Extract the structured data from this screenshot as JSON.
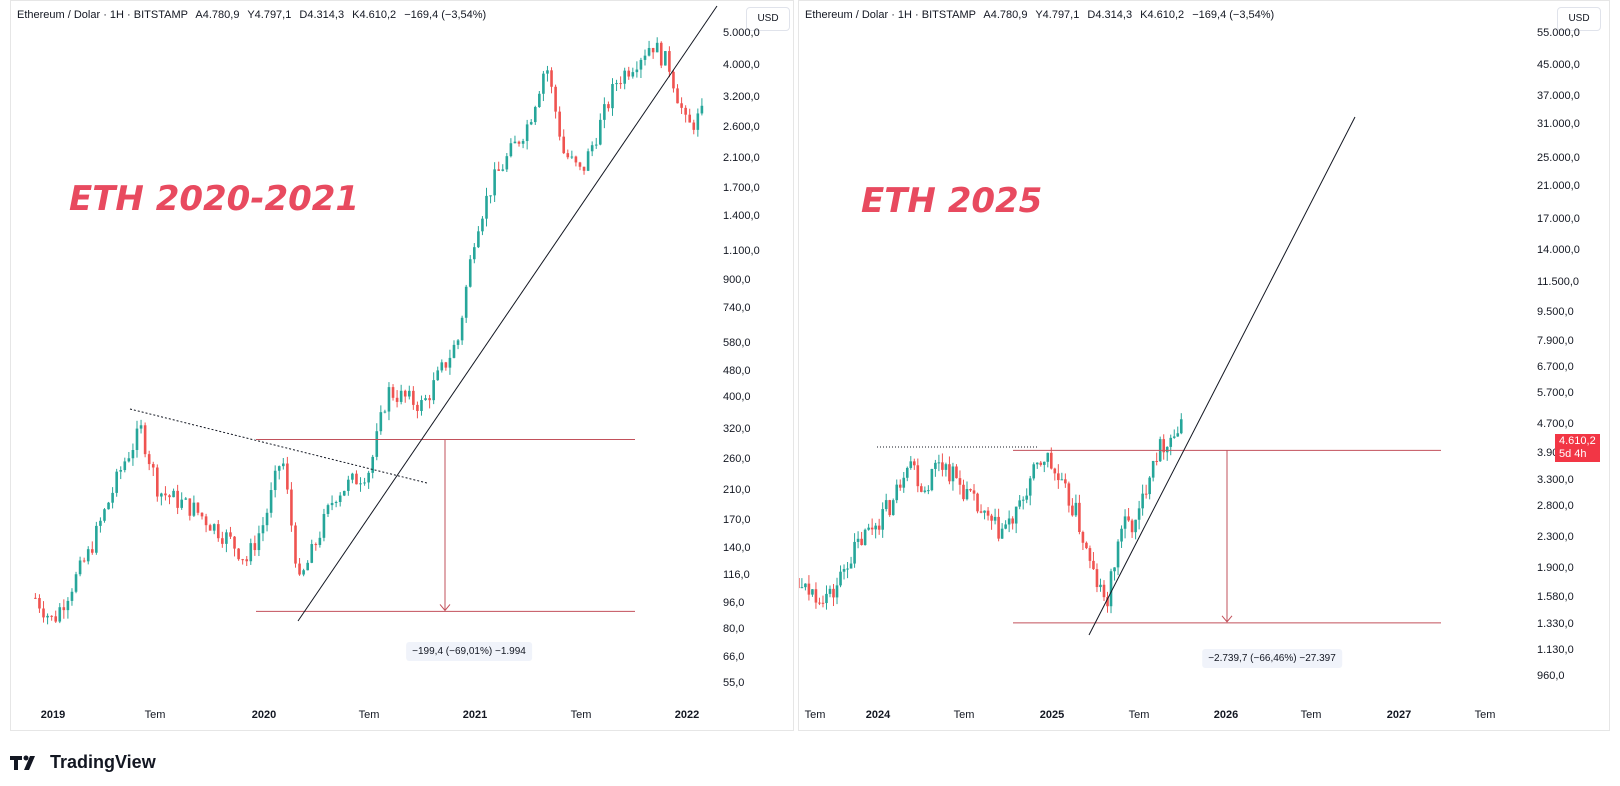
{
  "header": {
    "symbol": "Ethereum / Dolar · 1H · BITSTAMP",
    "open": "A4.780,9",
    "high": "Y4.797,1",
    "low": "D4.314,3",
    "close": "K4.610,2",
    "change": "−169,4 (−3,54%)"
  },
  "currency": "USD",
  "brand": "TradingView",
  "colors": {
    "up": "#26a69a",
    "down": "#ef5350",
    "title": "#e84a5f",
    "level": "#c2515b",
    "price_tag": "#f23645"
  },
  "chart_data": [
    {
      "type": "candlestick",
      "title": "ETH 2020-2021",
      "scale": "log",
      "ylim": [
        55,
        6000
      ],
      "y_ticks": [
        "5.000,0",
        "4.000,0",
        "3.200,0",
        "2.600,0",
        "2.100,0",
        "1.700,0",
        "1.400,0",
        "1.100,0",
        "900,0",
        "740,0",
        "580,0",
        "480,0",
        "400,0",
        "320,0",
        "260,0",
        "210,0",
        "170,0",
        "140,0",
        "116,0",
        "96,0",
        "80,0",
        "66,0",
        "55,0"
      ],
      "x_ticks": [
        "2019",
        "Tem",
        "2020",
        "Tem",
        "2021",
        "Tem",
        "2022"
      ],
      "series_hint": "weekly ETH/USD candles 2018-12 to 2022-02",
      "close_path": [
        {
          "t": "2018-12",
          "v": 100
        },
        {
          "t": "2019-01",
          "v": 85
        },
        {
          "t": "2019-03",
          "v": 135
        },
        {
          "t": "2019-05",
          "v": 255
        },
        {
          "t": "2019-06",
          "v": 320
        },
        {
          "t": "2019-07",
          "v": 210
        },
        {
          "t": "2019-09",
          "v": 185
        },
        {
          "t": "2019-11",
          "v": 150
        },
        {
          "t": "2019-12",
          "v": 130
        },
        {
          "t": "2020-01",
          "v": 170
        },
        {
          "t": "2020-02",
          "v": 270
        },
        {
          "t": "2020-03",
          "v": 110
        },
        {
          "t": "2020-05",
          "v": 205
        },
        {
          "t": "2020-07",
          "v": 245
        },
        {
          "t": "2020-08",
          "v": 420
        },
        {
          "t": "2020-10",
          "v": 380
        },
        {
          "t": "2020-12",
          "v": 600
        },
        {
          "t": "2021-01",
          "v": 1300
        },
        {
          "t": "2021-02",
          "v": 1800
        },
        {
          "t": "2021-04",
          "v": 2700
        },
        {
          "t": "2021-05",
          "v": 4100
        },
        {
          "t": "2021-06",
          "v": 2200
        },
        {
          "t": "2021-07",
          "v": 1900
        },
        {
          "t": "2021-09",
          "v": 3600
        },
        {
          "t": "2021-11",
          "v": 4700
        },
        {
          "t": "2021-12",
          "v": 4000
        },
        {
          "t": "2022-01",
          "v": 2600
        },
        {
          "t": "2022-02",
          "v": 2900
        }
      ],
      "levels": [
        {
          "value": 300
        },
        {
          "value": 91
        }
      ],
      "annotation": "−199,4 (−69,01%) −1.994"
    },
    {
      "type": "candlestick",
      "title": "ETH 2025",
      "scale": "log",
      "ylim": [
        900,
        58000
      ],
      "y_ticks": [
        "55.000,0",
        "45.000,0",
        "37.000,0",
        "31.000,0",
        "25.000,0",
        "21.000,0",
        "17.000,0",
        "14.000,0",
        "11.500,0",
        "9.500,0",
        "7.900,0",
        "6.700,0",
        "5.700,0",
        "4.700,0",
        "3.900,0",
        "3.300,0",
        "2.800,0",
        "2.300,0",
        "1.900,0",
        "1.580,0",
        "1.330,0",
        "1.130,0",
        "960,0"
      ],
      "x_ticks": [
        "Tem",
        "2024",
        "Tem",
        "2025",
        "Tem",
        "2026",
        "Tem",
        "2027",
        "Tem"
      ],
      "series_hint": "weekly ETH/USD candles 2023-05 to 2025-09",
      "close_path": [
        {
          "t": "2023-05",
          "v": 1850
        },
        {
          "t": "2023-06",
          "v": 1700
        },
        {
          "t": "2023-07",
          "v": 1900
        },
        {
          "t": "2023-08",
          "v": 1650
        },
        {
          "t": "2023-10",
          "v": 1600
        },
        {
          "t": "2023-11",
          "v": 2000
        },
        {
          "t": "2023-12",
          "v": 2300
        },
        {
          "t": "2024-02",
          "v": 2900
        },
        {
          "t": "2024-03",
          "v": 3900
        },
        {
          "t": "2024-04",
          "v": 3100
        },
        {
          "t": "2024-05",
          "v": 3800
        },
        {
          "t": "2024-06",
          "v": 3400
        },
        {
          "t": "2024-08",
          "v": 2600
        },
        {
          "t": "2024-09",
          "v": 2400
        },
        {
          "t": "2024-10",
          "v": 2600
        },
        {
          "t": "2024-11",
          "v": 3300
        },
        {
          "t": "2024-12",
          "v": 3900
        },
        {
          "t": "2025-01",
          "v": 3200
        },
        {
          "t": "2025-02",
          "v": 2700
        },
        {
          "t": "2025-03",
          "v": 1900
        },
        {
          "t": "2025-04",
          "v": 1500
        },
        {
          "t": "2025-05",
          "v": 2500
        },
        {
          "t": "2025-06",
          "v": 2500
        },
        {
          "t": "2025-07",
          "v": 3800
        },
        {
          "t": "2025-08",
          "v": 4300
        },
        {
          "t": "2025-09",
          "v": 4610
        }
      ],
      "levels": [
        {
          "value": 4000
        },
        {
          "value": 1350
        }
      ],
      "annotation": "−2.739,7 (−66,46%) −27.397",
      "last_price": "4.610,2",
      "last_price_countdown": "5d 4h"
    }
  ]
}
